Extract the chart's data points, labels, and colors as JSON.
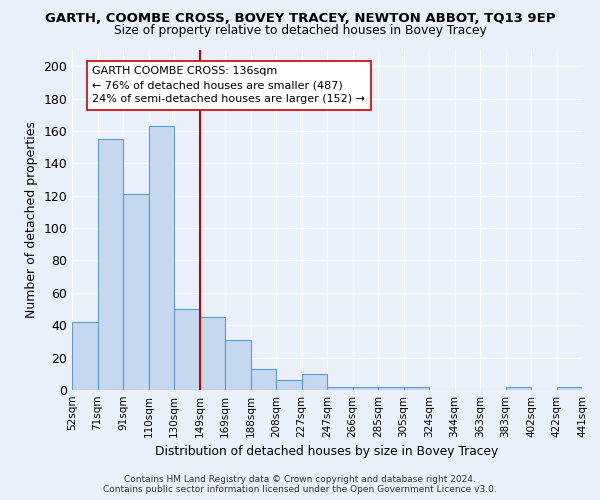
{
  "title": "GARTH, COOMBE CROSS, BOVEY TRACEY, NEWTON ABBOT, TQ13 9EP",
  "subtitle": "Size of property relative to detached houses in Bovey Tracey",
  "xlabel": "Distribution of detached houses by size in Bovey Tracey",
  "ylabel": "Number of detached properties",
  "bar_values": [
    42,
    155,
    121,
    163,
    50,
    45,
    31,
    13,
    6,
    10,
    2,
    2,
    2,
    2,
    0,
    0,
    0,
    2,
    0,
    2
  ],
  "bar_labels": [
    "52sqm",
    "71sqm",
    "91sqm",
    "110sqm",
    "130sqm",
    "149sqm",
    "169sqm",
    "188sqm",
    "208sqm",
    "227sqm",
    "247sqm",
    "266sqm",
    "285sqm",
    "305sqm",
    "324sqm",
    "344sqm",
    "363sqm",
    "383sqm",
    "402sqm",
    "422sqm",
    "441sqm"
  ],
  "bar_color": "#c5d8f0",
  "bar_edge_color": "#5b9bd5",
  "vline_color": "#cc0000",
  "annotation_text": "GARTH COOMBE CROSS: 136sqm\n← 76% of detached houses are smaller (487)\n24% of semi-detached houses are larger (152) →",
  "annotation_box_color": "white",
  "annotation_box_edge": "#cc0000",
  "ylim": [
    0,
    210
  ],
  "yticks": [
    0,
    20,
    40,
    60,
    80,
    100,
    120,
    140,
    160,
    180,
    200
  ],
  "background_color": "#eaf1fb",
  "grid_color": "white",
  "footer": "Contains HM Land Registry data © Crown copyright and database right 2024.\nContains public sector information licensed under the Open Government Licence v3.0."
}
